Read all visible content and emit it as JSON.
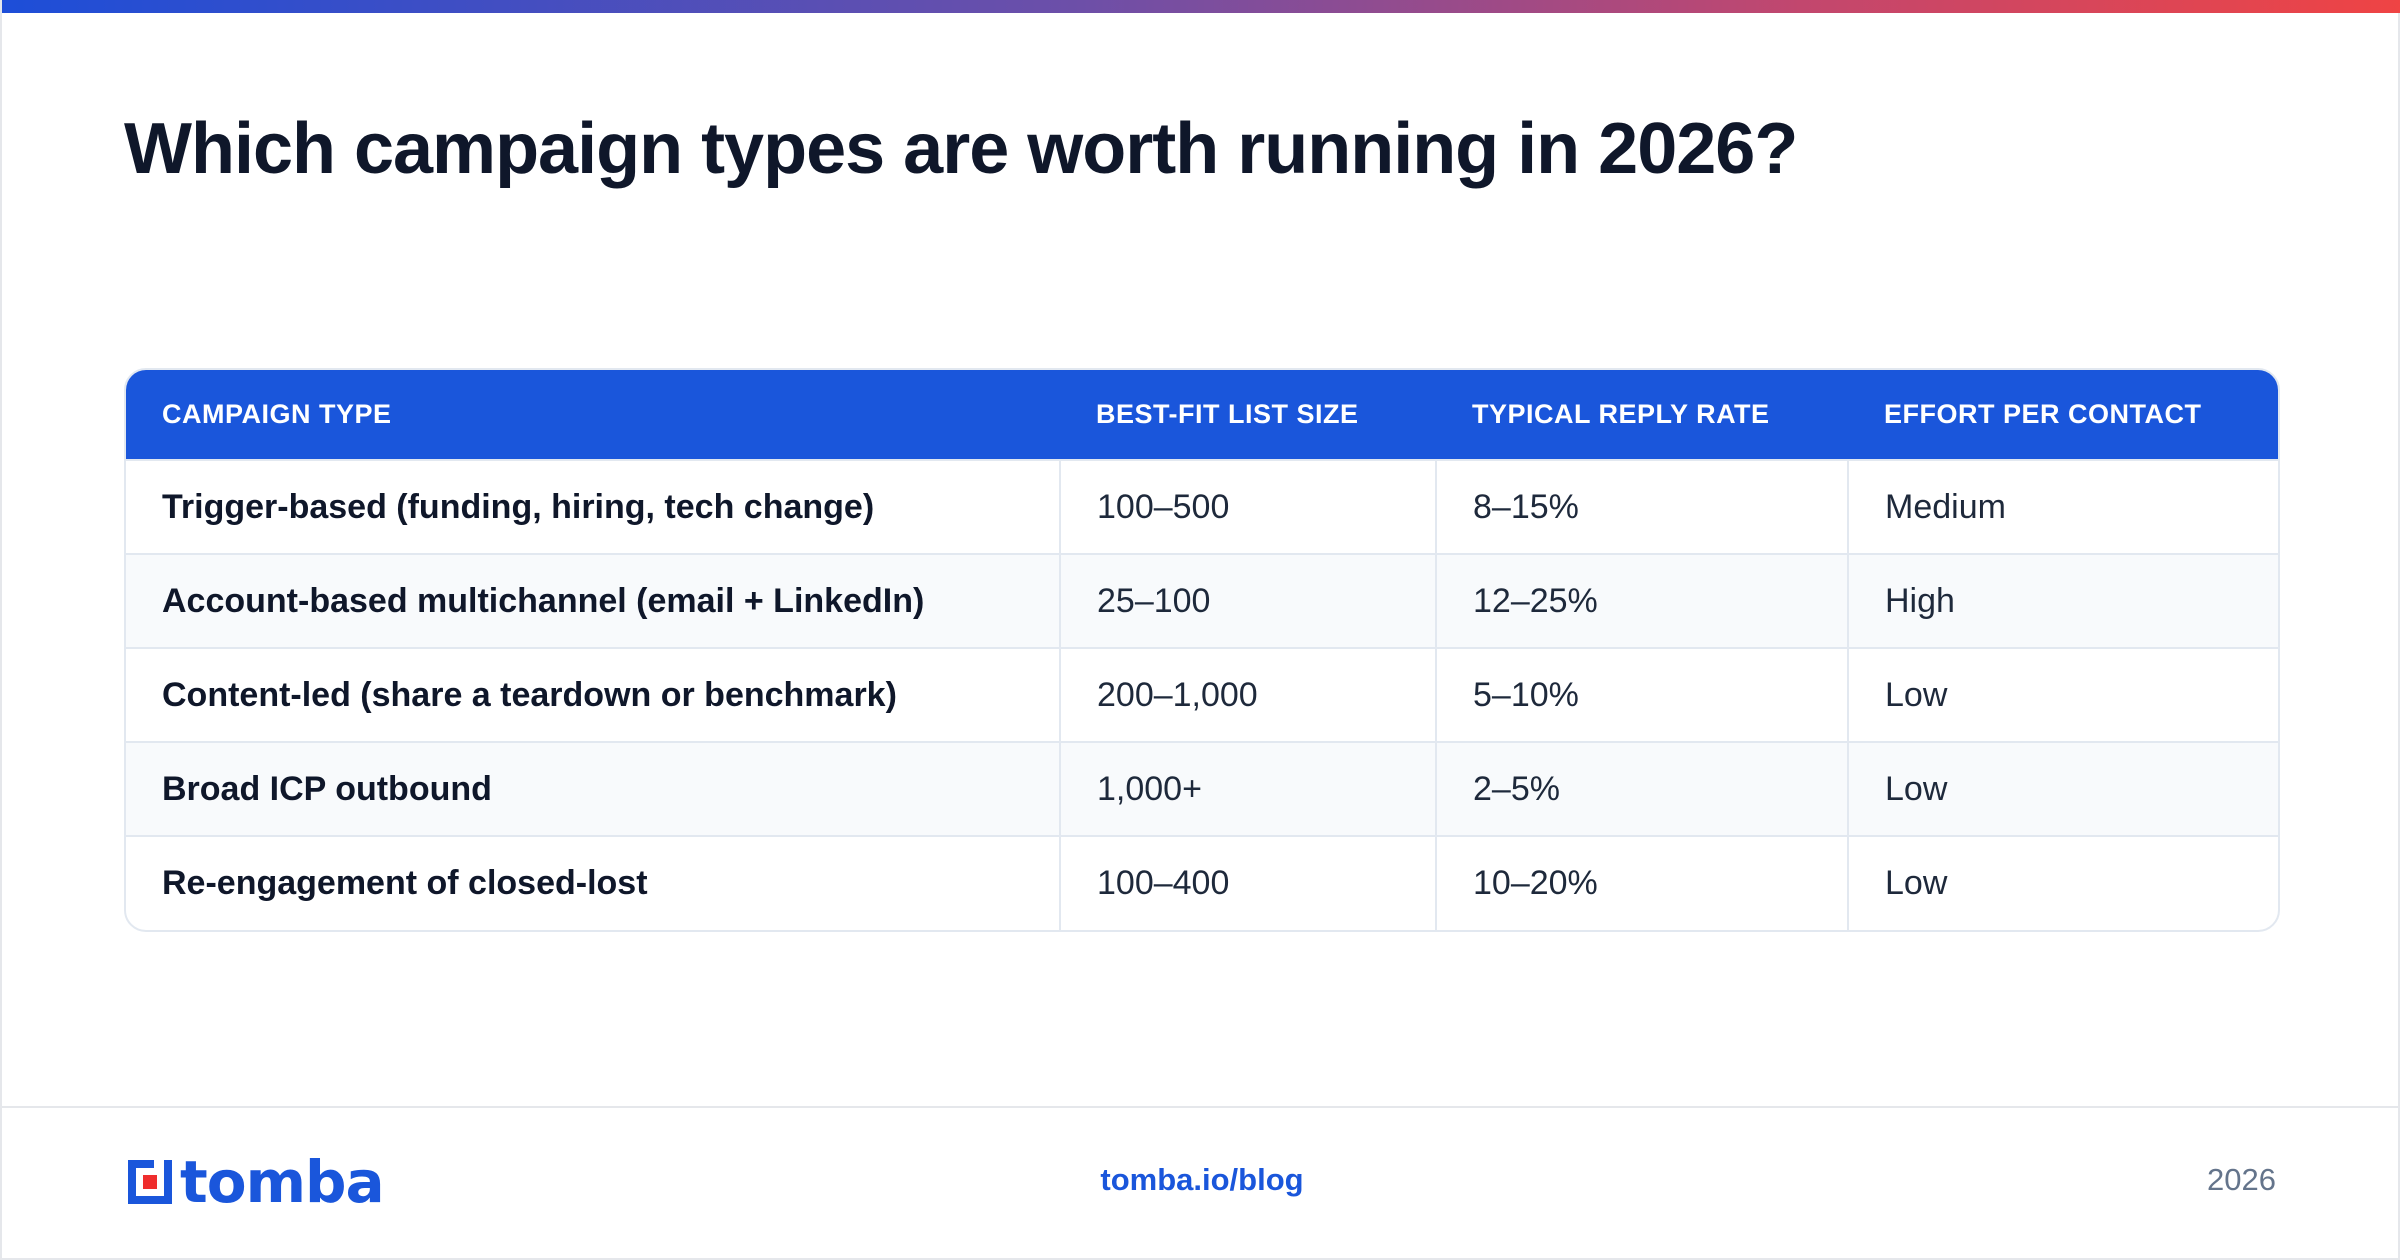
{
  "title": "Which campaign types are worth running in 2026?",
  "table": {
    "headers": [
      "CAMPAIGN TYPE",
      "BEST-FIT LIST SIZE",
      "TYPICAL REPLY RATE",
      "EFFORT PER CONTACT"
    ],
    "rows": [
      [
        "Trigger-based (funding, hiring, tech change)",
        "100–500",
        "8–15%",
        "Medium"
      ],
      [
        "Account-based multichannel (email + LinkedIn)",
        "25–100",
        "12–25%",
        "High"
      ],
      [
        "Content-led (share a teardown or benchmark)",
        "200–1,000",
        "5–10%",
        "Low"
      ],
      [
        "Broad ICP outbound",
        "1,000+",
        "2–5%",
        "Low"
      ],
      [
        "Re-engagement of closed-lost",
        "100–400",
        "10–20%",
        "Low"
      ]
    ]
  },
  "footer": {
    "logo_text": "tomba",
    "logo_icon": "tomba-logo-icon",
    "link": "tomba.io/blog",
    "year": "2026"
  },
  "colors": {
    "accent": "#1a56db",
    "logo_red": "#ef2d2d",
    "gradient_start": "#1d4ed8",
    "gradient_end": "#ef4444"
  }
}
